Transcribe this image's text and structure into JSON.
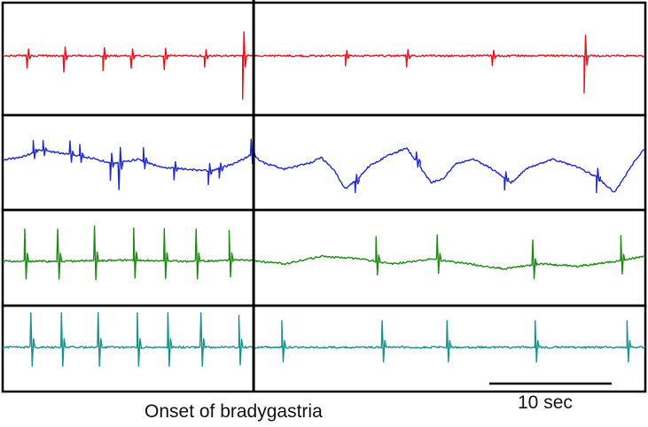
{
  "chart_data": {
    "type": "line",
    "title": "",
    "xlabel": "",
    "ylabel": "",
    "grid": false,
    "legend": "none",
    "onset_marker_label": "Onset of bradygastria",
    "scale_bar": {
      "label": "10 sec",
      "duration_sec": 10
    },
    "time_window_sec": [
      0,
      52.5
    ],
    "onset_time_sec": 20.5,
    "series": [
      {
        "color": "#e8141c",
        "baseline": 0,
        "wander": [
          [
            0,
            0
          ],
          [
            52.5,
            0
          ]
        ],
        "events": [
          {
            "t": 2.0,
            "amp": -1.0
          },
          {
            "t": 5.0,
            "amp": -1.3
          },
          {
            "t": 8.2,
            "amp": -1.2
          },
          {
            "t": 10.5,
            "amp": -1.0
          },
          {
            "t": 13.2,
            "amp": -1.1
          },
          {
            "t": 16.5,
            "amp": -0.9
          },
          {
            "t": 19.6,
            "amp": -3.5
          },
          {
            "t": 28.0,
            "amp": -0.8
          },
          {
            "t": 33.0,
            "amp": -0.9
          },
          {
            "t": 40.0,
            "amp": -0.8
          },
          {
            "t": 47.5,
            "amp": -3.0
          }
        ]
      },
      {
        "color": "#1e2ad0",
        "baseline": 0,
        "wander": [
          [
            0,
            0
          ],
          [
            1.5,
            0.1
          ],
          [
            3,
            0.5
          ],
          [
            5,
            0.3
          ],
          [
            7,
            0.1
          ],
          [
            9,
            -0.2
          ],
          [
            11,
            0.0
          ],
          [
            13,
            -0.4
          ],
          [
            15,
            -0.5
          ],
          [
            17,
            -0.6
          ],
          [
            19,
            -0.2
          ],
          [
            20.5,
            0.3
          ],
          [
            21,
            -0.1
          ],
          [
            23,
            -0.5
          ],
          [
            25,
            -0.2
          ],
          [
            26,
            0.1
          ],
          [
            27,
            -0.5
          ],
          [
            28,
            -1.5
          ],
          [
            29,
            -1.0
          ],
          [
            30,
            -0.3
          ],
          [
            31.5,
            0.2
          ],
          [
            33,
            0.6
          ],
          [
            35,
            -1.2
          ],
          [
            36,
            -1.0
          ],
          [
            37,
            -0.2
          ],
          [
            38.5,
            0.0
          ],
          [
            40,
            -0.5
          ],
          [
            41.5,
            -1.2
          ],
          [
            43,
            -0.4
          ],
          [
            45,
            0.0
          ],
          [
            47,
            -0.4
          ],
          [
            48.5,
            -0.9
          ],
          [
            50,
            -1.7
          ],
          [
            51.5,
            -0.2
          ],
          [
            52.5,
            0.6
          ]
        ],
        "events": [
          {
            "t": 2.5,
            "amp": 0.6
          },
          {
            "t": 3.3,
            "amp": 0.5
          },
          {
            "t": 5.5,
            "amp": 0.7
          },
          {
            "t": 6.3,
            "amp": 0.6
          },
          {
            "t": 8.8,
            "amp": -0.9
          },
          {
            "t": 9.5,
            "amp": -1.4
          },
          {
            "t": 11.5,
            "amp": 0.7
          },
          {
            "t": 14.0,
            "amp": -0.6
          },
          {
            "t": 16.8,
            "amp": -0.7
          },
          {
            "t": 17.7,
            "amp": -0.5
          },
          {
            "t": 20.3,
            "amp": 0.8
          },
          {
            "t": 28.8,
            "amp": -0.6
          },
          {
            "t": 33.8,
            "amp": 0.5
          },
          {
            "t": 41.0,
            "amp": -0.6
          },
          {
            "t": 48.5,
            "amp": -0.8
          }
        ]
      },
      {
        "color": "#1e8c14",
        "baseline": 0,
        "wander": [
          [
            0,
            0
          ],
          [
            5,
            0
          ],
          [
            10,
            0.05
          ],
          [
            15,
            0
          ],
          [
            20,
            0.05
          ],
          [
            23,
            -0.1
          ],
          [
            26,
            0.2
          ],
          [
            29,
            0.1
          ],
          [
            32,
            -0.1
          ],
          [
            35,
            0.1
          ],
          [
            38,
            -0.1
          ],
          [
            41,
            -0.3
          ],
          [
            44,
            -0.1
          ],
          [
            47,
            -0.2
          ],
          [
            50,
            0.0
          ],
          [
            52.5,
            0.2
          ]
        ],
        "events": [
          {
            "t": 1.8,
            "amp": 1.3
          },
          {
            "t": 4.5,
            "amp": 1.3
          },
          {
            "t": 7.5,
            "amp": 1.4
          },
          {
            "t": 10.7,
            "amp": 1.3
          },
          {
            "t": 13.2,
            "amp": 1.3
          },
          {
            "t": 15.8,
            "amp": 1.3
          },
          {
            "t": 18.5,
            "amp": 1.2
          },
          {
            "t": 30.5,
            "amp": 1.0
          },
          {
            "t": 35.5,
            "amp": 1.0
          },
          {
            "t": 43.3,
            "amp": 1.0
          },
          {
            "t": 50.5,
            "amp": 1.0
          }
        ]
      },
      {
        "color": "#17938f",
        "baseline": 0,
        "wander": [
          [
            0,
            0
          ],
          [
            52.5,
            0
          ]
        ],
        "events": [
          {
            "t": 2.3,
            "amp": 1.3
          },
          {
            "t": 4.8,
            "amp": 1.3
          },
          {
            "t": 7.8,
            "amp": 1.3
          },
          {
            "t": 11.0,
            "amp": 1.3
          },
          {
            "t": 13.5,
            "amp": 1.3
          },
          {
            "t": 16.2,
            "amp": 1.3
          },
          {
            "t": 19.3,
            "amp": 1.2
          },
          {
            "t": 22.8,
            "amp": 1.0
          },
          {
            "t": 31.0,
            "amp": 1.0
          },
          {
            "t": 36.3,
            "amp": 1.0
          },
          {
            "t": 43.5,
            "amp": 1.0
          },
          {
            "t": 51.0,
            "amp": 1.0
          }
        ]
      }
    ]
  }
}
